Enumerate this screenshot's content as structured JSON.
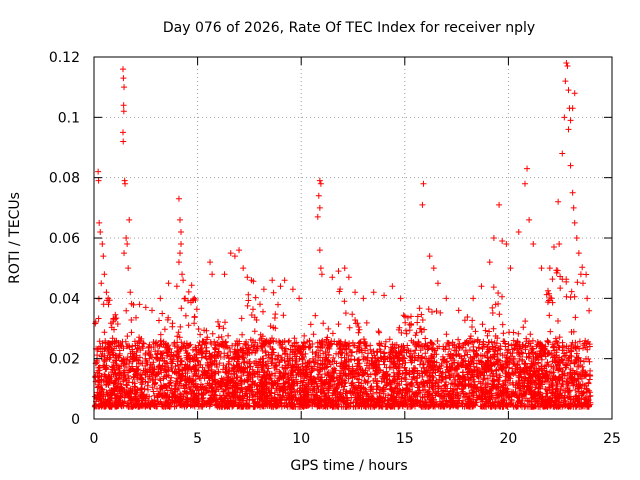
{
  "chart_data": {
    "type": "scatter",
    "title": "Day 076 of 2026, Rate Of TEC Index for receiver nply",
    "xlabel": "GPS time / hours",
    "ylabel": "ROTI / TECUs",
    "xlim": [
      0,
      25
    ],
    "ylim": [
      0,
      0.12
    ],
    "xticks": [
      0,
      5,
      10,
      15,
      20,
      25
    ],
    "xtick_labels": [
      "0",
      "5",
      "10",
      "15",
      "20",
      "25"
    ],
    "yticks": [
      0,
      0.02,
      0.04,
      0.06,
      0.08,
      0.1,
      0.12
    ],
    "ytick_labels": [
      "0",
      "0.02",
      "0.04",
      "0.06",
      "0.08",
      "0.1",
      "0.12"
    ],
    "grid": true,
    "marker": "+",
    "color": "#ff0000",
    "series": [
      {
        "name": "ROTI",
        "note": "Dense cloud of '+' markers from 0 to 24 h, mostly 0.005-0.03 TECU/s; representative points listed (background density generated procedurally).",
        "points": [
          [
            0.2,
            0.082
          ],
          [
            0.22,
            0.079
          ],
          [
            0.25,
            0.065
          ],
          [
            0.3,
            0.062
          ],
          [
            0.4,
            0.058
          ],
          [
            0.45,
            0.054
          ],
          [
            0.5,
            0.048
          ],
          [
            0.6,
            0.042
          ],
          [
            0.7,
            0.038
          ],
          [
            0.35,
            0.045
          ],
          [
            1.4,
            0.116
          ],
          [
            1.42,
            0.113
          ],
          [
            1.45,
            0.11
          ],
          [
            1.43,
            0.104
          ],
          [
            1.44,
            0.102
          ],
          [
            1.4,
            0.095
          ],
          [
            1.41,
            0.092
          ],
          [
            1.48,
            0.079
          ],
          [
            1.5,
            0.078
          ],
          [
            1.7,
            0.066
          ],
          [
            1.55,
            0.06
          ],
          [
            1.6,
            0.058
          ],
          [
            1.45,
            0.055
          ],
          [
            1.65,
            0.05
          ],
          [
            1.75,
            0.042
          ],
          [
            2.2,
            0.038
          ],
          [
            2.5,
            0.037
          ],
          [
            2.8,
            0.036
          ],
          [
            3.2,
            0.04
          ],
          [
            3.6,
            0.045
          ],
          [
            4.1,
            0.073
          ],
          [
            4.15,
            0.066
          ],
          [
            4.2,
            0.062
          ],
          [
            4.2,
            0.058
          ],
          [
            4.15,
            0.055
          ],
          [
            4.1,
            0.052
          ],
          [
            4.25,
            0.048
          ],
          [
            4.3,
            0.046
          ],
          [
            4.0,
            0.044
          ],
          [
            4.4,
            0.04
          ],
          [
            5.6,
            0.052
          ],
          [
            5.7,
            0.048
          ],
          [
            6.3,
            0.048
          ],
          [
            6.6,
            0.055
          ],
          [
            6.8,
            0.054
          ],
          [
            7.0,
            0.056
          ],
          [
            7.2,
            0.05
          ],
          [
            7.4,
            0.047
          ],
          [
            7.6,
            0.046
          ],
          [
            8.2,
            0.043
          ],
          [
            8.6,
            0.046
          ],
          [
            9.0,
            0.044
          ],
          [
            9.2,
            0.046
          ],
          [
            9.6,
            0.043
          ],
          [
            9.9,
            0.04
          ],
          [
            10.9,
            0.079
          ],
          [
            10.95,
            0.078
          ],
          [
            10.85,
            0.074
          ],
          [
            10.9,
            0.07
          ],
          [
            10.8,
            0.067
          ],
          [
            10.9,
            0.056
          ],
          [
            10.95,
            0.05
          ],
          [
            11.0,
            0.048
          ],
          [
            11.5,
            0.047
          ],
          [
            11.8,
            0.049
          ],
          [
            12.1,
            0.05
          ],
          [
            12.3,
            0.047
          ],
          [
            12.6,
            0.042
          ],
          [
            13.0,
            0.04
          ],
          [
            13.5,
            0.042
          ],
          [
            14.0,
            0.041
          ],
          [
            14.4,
            0.044
          ],
          [
            14.8,
            0.04
          ],
          [
            15.3,
            0.034
          ],
          [
            15.6,
            0.032
          ],
          [
            15.9,
            0.078
          ],
          [
            15.85,
            0.071
          ],
          [
            16.2,
            0.054
          ],
          [
            16.4,
            0.05
          ],
          [
            16.6,
            0.045
          ],
          [
            17.0,
            0.04
          ],
          [
            17.6,
            0.036
          ],
          [
            18.3,
            0.04
          ],
          [
            18.7,
            0.044
          ],
          [
            19.1,
            0.052
          ],
          [
            19.3,
            0.06
          ],
          [
            19.55,
            0.071
          ],
          [
            19.7,
            0.059
          ],
          [
            19.9,
            0.058
          ],
          [
            20.1,
            0.05
          ],
          [
            20.5,
            0.062
          ],
          [
            20.8,
            0.078
          ],
          [
            20.9,
            0.083
          ],
          [
            21.0,
            0.066
          ],
          [
            21.2,
            0.058
          ],
          [
            21.6,
            0.05
          ],
          [
            22.0,
            0.05
          ],
          [
            22.2,
            0.057
          ],
          [
            22.4,
            0.072
          ],
          [
            22.45,
            0.058
          ],
          [
            22.6,
            0.088
          ],
          [
            22.7,
            0.1
          ],
          [
            22.75,
            0.112
          ],
          [
            22.8,
            0.118
          ],
          [
            22.85,
            0.117
          ],
          [
            22.9,
            0.109
          ],
          [
            22.95,
            0.103
          ],
          [
            23.0,
            0.099
          ],
          [
            23.1,
            0.103
          ],
          [
            23.2,
            0.108
          ],
          [
            22.9,
            0.096
          ],
          [
            23.0,
            0.084
          ],
          [
            23.1,
            0.075
          ],
          [
            23.15,
            0.07
          ],
          [
            23.2,
            0.065
          ],
          [
            23.3,
            0.06
          ],
          [
            23.4,
            0.055
          ],
          [
            23.5,
            0.048
          ],
          [
            23.6,
            0.045
          ],
          [
            23.8,
            0.04
          ]
        ]
      }
    ]
  }
}
